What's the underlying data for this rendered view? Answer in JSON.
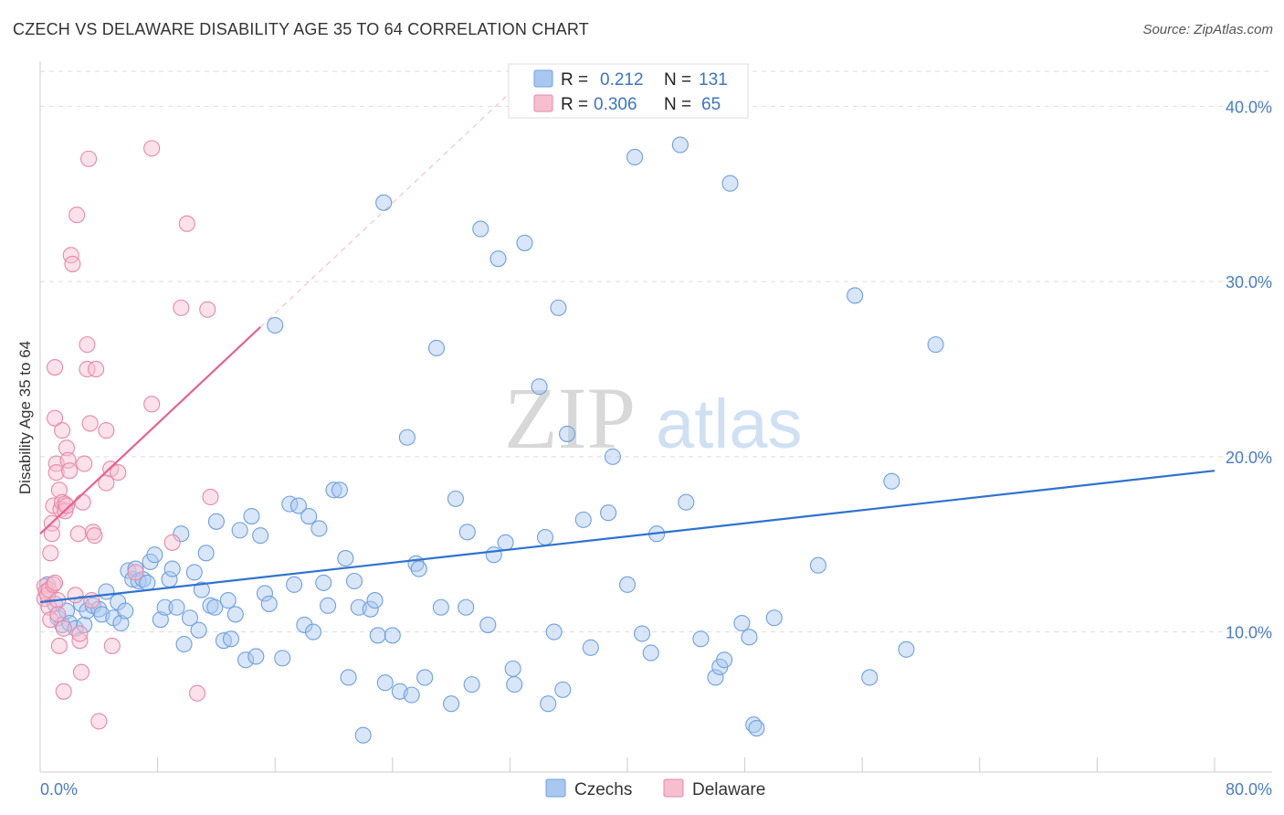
{
  "header": {
    "title": "CZECH VS DELAWARE DISABILITY AGE 35 TO 64 CORRELATION CHART",
    "source": "Source: ZipAtlas.com"
  },
  "watermark": {
    "zip": "ZIP",
    "atlas": "atlas"
  },
  "legend": {
    "r_label": "R =",
    "n_label": "N =",
    "rows": [
      {
        "r": "0.212",
        "n": "131"
      },
      {
        "r": "0.306",
        "n": "65"
      }
    ]
  },
  "colors": {
    "czechs_fill": "#a9c8ef",
    "czechs_stroke": "#6f9fe0",
    "czechs_line": "#2f72d0",
    "delaware_fill": "#f6bfd0",
    "delaware_stroke": "#e987a8",
    "delaware_line": "#e5628f",
    "grid": "#dddddd",
    "tick_text": "#4a7cc9"
  },
  "chart_data": {
    "type": "scatter",
    "title": "CZECH VS DELAWARE DISABILITY AGE 35 TO 64 CORRELATION CHART",
    "xlabel": "",
    "ylabel": "Disability Age 35 to 64",
    "xlim": [
      0,
      80
    ],
    "ylim": [
      2,
      42
    ],
    "x_tick_labels": [
      "0.0%",
      "80.0%"
    ],
    "y_ticks": [
      10,
      20,
      30,
      40
    ],
    "y_tick_labels": [
      "10.0%",
      "20.0%",
      "30.0%",
      "40.0%"
    ],
    "grid": true,
    "legend_placement": "top-center",
    "series": [
      {
        "name": "Czechs",
        "r": 0.212,
        "n": 131,
        "trend": {
          "x": [
            0,
            80
          ],
          "y": [
            11.7,
            19.2
          ]
        },
        "points": [
          [
            0.5,
            12.7
          ],
          [
            1.0,
            11.6
          ],
          [
            1.2,
            10.8
          ],
          [
            1.5,
            10.4
          ],
          [
            1.8,
            11.2
          ],
          [
            2.0,
            10.5
          ],
          [
            2.4,
            10.2
          ],
          [
            2.8,
            11.6
          ],
          [
            3.0,
            10.4
          ],
          [
            3.2,
            11.2
          ],
          [
            3.6,
            11.5
          ],
          [
            4.0,
            11.3
          ],
          [
            4.2,
            11.0
          ],
          [
            4.5,
            12.3
          ],
          [
            5.0,
            10.8
          ],
          [
            5.3,
            11.7
          ],
          [
            5.5,
            10.5
          ],
          [
            5.8,
            11.2
          ],
          [
            6.0,
            13.5
          ],
          [
            6.3,
            13.0
          ],
          [
            6.5,
            13.6
          ],
          [
            6.7,
            12.9
          ],
          [
            7.0,
            13.0
          ],
          [
            7.3,
            12.8
          ],
          [
            7.5,
            14.0
          ],
          [
            7.8,
            14.4
          ],
          [
            8.2,
            10.7
          ],
          [
            8.5,
            11.4
          ],
          [
            8.8,
            13.0
          ],
          [
            9.0,
            13.6
          ],
          [
            9.3,
            11.4
          ],
          [
            9.6,
            15.6
          ],
          [
            9.8,
            9.3
          ],
          [
            10.2,
            10.8
          ],
          [
            10.5,
            13.4
          ],
          [
            10.8,
            10.1
          ],
          [
            11.0,
            12.4
          ],
          [
            11.3,
            14.5
          ],
          [
            11.6,
            11.5
          ],
          [
            11.9,
            11.4
          ],
          [
            12.0,
            16.3
          ],
          [
            12.5,
            9.5
          ],
          [
            12.8,
            11.8
          ],
          [
            13.0,
            9.6
          ],
          [
            13.3,
            11.0
          ],
          [
            13.6,
            15.8
          ],
          [
            14.0,
            8.4
          ],
          [
            14.4,
            16.6
          ],
          [
            14.7,
            8.6
          ],
          [
            15.0,
            15.5
          ],
          [
            15.3,
            12.2
          ],
          [
            15.6,
            11.6
          ],
          [
            16.0,
            27.5
          ],
          [
            16.5,
            8.5
          ],
          [
            17.0,
            17.3
          ],
          [
            17.3,
            12.7
          ],
          [
            17.6,
            17.2
          ],
          [
            18.0,
            10.4
          ],
          [
            18.3,
            16.6
          ],
          [
            18.6,
            10.0
          ],
          [
            19.0,
            15.9
          ],
          [
            19.3,
            12.8
          ],
          [
            19.6,
            11.5
          ],
          [
            20.0,
            18.1
          ],
          [
            20.4,
            18.1
          ],
          [
            20.8,
            14.2
          ],
          [
            21.0,
            7.4
          ],
          [
            21.4,
            12.9
          ],
          [
            21.7,
            11.4
          ],
          [
            22.0,
            4.1
          ],
          [
            22.5,
            11.3
          ],
          [
            22.8,
            11.8
          ],
          [
            23.0,
            9.8
          ],
          [
            23.4,
            34.5
          ],
          [
            23.5,
            7.1
          ],
          [
            24.0,
            9.8
          ],
          [
            24.5,
            6.6
          ],
          [
            25.0,
            21.1
          ],
          [
            25.3,
            6.4
          ],
          [
            25.6,
            13.9
          ],
          [
            25.8,
            13.6
          ],
          [
            26.2,
            7.4
          ],
          [
            27.0,
            26.2
          ],
          [
            27.3,
            11.4
          ],
          [
            28.0,
            5.9
          ],
          [
            28.3,
            17.6
          ],
          [
            29.0,
            11.4
          ],
          [
            29.1,
            15.7
          ],
          [
            29.4,
            7.0
          ],
          [
            30.0,
            33.0
          ],
          [
            30.5,
            10.4
          ],
          [
            30.9,
            14.4
          ],
          [
            31.2,
            31.3
          ],
          [
            31.7,
            15.1
          ],
          [
            32.2,
            7.9
          ],
          [
            32.3,
            7.0
          ],
          [
            33.0,
            32.2
          ],
          [
            34.0,
            24.0
          ],
          [
            34.4,
            15.4
          ],
          [
            34.6,
            5.9
          ],
          [
            35.0,
            10.0
          ],
          [
            35.3,
            28.5
          ],
          [
            35.6,
            6.7
          ],
          [
            35.9,
            21.3
          ],
          [
            37.0,
            16.4
          ],
          [
            37.5,
            9.1
          ],
          [
            38.7,
            16.8
          ],
          [
            39.0,
            20.0
          ],
          [
            40.0,
            12.7
          ],
          [
            40.5,
            37.1
          ],
          [
            41.0,
            9.9
          ],
          [
            41.6,
            8.8
          ],
          [
            42.0,
            15.6
          ],
          [
            43.6,
            37.8
          ],
          [
            44.0,
            17.4
          ],
          [
            45.0,
            9.6
          ],
          [
            46.0,
            7.4
          ],
          [
            46.3,
            8.0
          ],
          [
            46.6,
            8.4
          ],
          [
            47.0,
            35.6
          ],
          [
            47.8,
            10.5
          ],
          [
            48.3,
            9.7
          ],
          [
            48.6,
            4.7
          ],
          [
            48.8,
            4.5
          ],
          [
            50.0,
            10.8
          ],
          [
            53.0,
            13.8
          ],
          [
            55.5,
            29.2
          ],
          [
            56.5,
            7.4
          ],
          [
            58.0,
            18.6
          ],
          [
            59.0,
            9.0
          ],
          [
            61.0,
            26.4
          ]
        ]
      },
      {
        "name": "Delaware",
        "r": 0.306,
        "n": 65,
        "trend": {
          "x": [
            0,
            15
          ],
          "y": [
            15.6,
            27.4
          ]
        },
        "points": [
          [
            0.3,
            12.6
          ],
          [
            0.3,
            11.9
          ],
          [
            0.4,
            12.3
          ],
          [
            0.5,
            12.1
          ],
          [
            0.6,
            12.4
          ],
          [
            0.6,
            11.4
          ],
          [
            0.7,
            10.7
          ],
          [
            0.7,
            14.5
          ],
          [
            0.8,
            16.2
          ],
          [
            0.8,
            15.6
          ],
          [
            0.9,
            17.2
          ],
          [
            0.9,
            12.7
          ],
          [
            1.0,
            12.8
          ],
          [
            1.0,
            25.1
          ],
          [
            1.0,
            22.2
          ],
          [
            1.1,
            19.6
          ],
          [
            1.1,
            19.1
          ],
          [
            1.2,
            11.8
          ],
          [
            1.2,
            11.0
          ],
          [
            1.3,
            9.2
          ],
          [
            1.3,
            18.1
          ],
          [
            1.4,
            17.0
          ],
          [
            1.5,
            17.4
          ],
          [
            1.5,
            21.5
          ],
          [
            1.6,
            6.6
          ],
          [
            1.6,
            10.2
          ],
          [
            1.7,
            17.3
          ],
          [
            1.7,
            16.9
          ],
          [
            1.8,
            17.2
          ],
          [
            1.8,
            20.5
          ],
          [
            1.9,
            19.8
          ],
          [
            2.0,
            19.2
          ],
          [
            2.1,
            31.5
          ],
          [
            2.2,
            31.0
          ],
          [
            2.4,
            12.1
          ],
          [
            2.5,
            33.8
          ],
          [
            2.6,
            15.6
          ],
          [
            2.7,
            9.5
          ],
          [
            2.7,
            9.9
          ],
          [
            2.8,
            7.7
          ],
          [
            2.9,
            17.4
          ],
          [
            3.0,
            19.6
          ],
          [
            3.2,
            26.4
          ],
          [
            3.2,
            25.0
          ],
          [
            3.3,
            37.0
          ],
          [
            3.4,
            21.9
          ],
          [
            3.5,
            11.8
          ],
          [
            3.6,
            15.7
          ],
          [
            3.7,
            15.5
          ],
          [
            3.8,
            25.0
          ],
          [
            4.0,
            4.9
          ],
          [
            4.5,
            18.5
          ],
          [
            4.5,
            21.5
          ],
          [
            4.8,
            19.3
          ],
          [
            4.9,
            9.2
          ],
          [
            5.3,
            19.1
          ],
          [
            7.6,
            37.6
          ],
          [
            7.6,
            23.0
          ],
          [
            9.0,
            15.1
          ],
          [
            9.6,
            28.5
          ],
          [
            10.0,
            33.3
          ],
          [
            11.4,
            28.4
          ],
          [
            11.6,
            17.7
          ],
          [
            10.7,
            6.5
          ],
          [
            6.5,
            13.4
          ]
        ]
      }
    ]
  },
  "bottom_legend": [
    {
      "label": "Czechs"
    },
    {
      "label": "Delaware"
    }
  ]
}
